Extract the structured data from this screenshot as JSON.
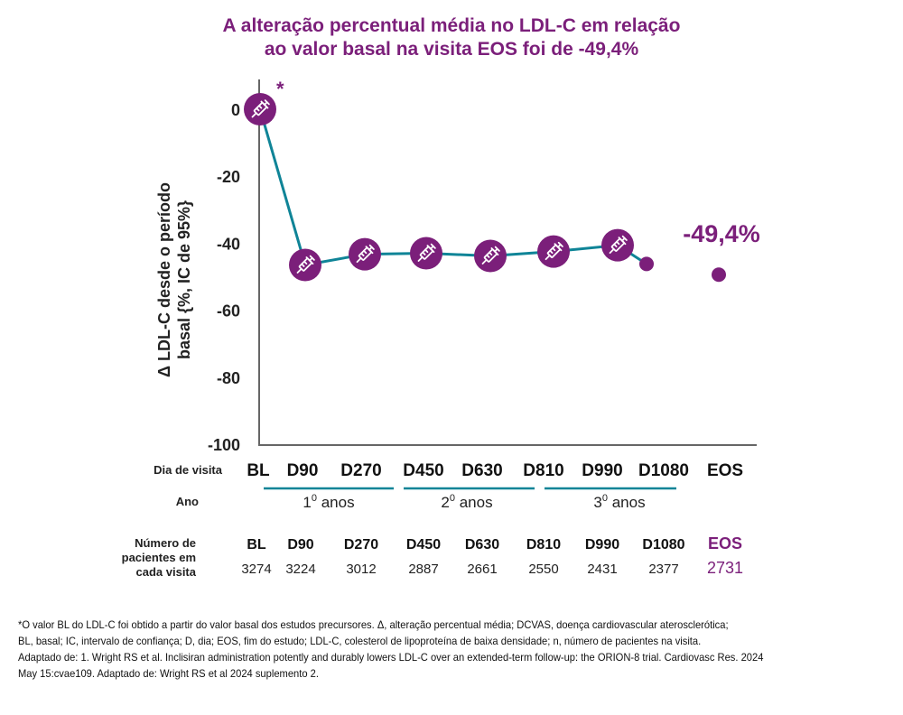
{
  "title_lines": [
    "A alteração percentual média no LDL-C em relação",
    "ao valor basal na visita EOS foi de -49,4%"
  ],
  "chart_data": {
    "type": "line",
    "title": "A alteração percentual média no LDL-C em relação ao valor basal na visita EOS foi de -49,4%",
    "ylabel_lines": [
      "Δ LDL-C desde o período",
      "basal {%, IC de 95%}"
    ],
    "ylim": [
      -100,
      0
    ],
    "yticks": [
      0,
      -20,
      -40,
      -60,
      -80,
      -100
    ],
    "ytick_labels": [
      "0",
      "-20",
      "-40",
      "-60",
      "-80",
      "-100"
    ],
    "grid": false,
    "categories": [
      "BL",
      "D90",
      "D270",
      "D450",
      "D630",
      "D810",
      "D990",
      "D1080",
      "EOS"
    ],
    "values": [
      0,
      -46.5,
      -43.3,
      -43,
      -43.8,
      -42.5,
      -40.6,
      -46.2,
      -49.4
    ],
    "injection_visits": [
      true,
      true,
      true,
      true,
      true,
      true,
      true,
      false,
      false
    ],
    "connected": [
      true,
      true,
      true,
      true,
      true,
      true,
      true,
      true,
      false
    ],
    "annotations": {
      "bl_asterisk": "*",
      "eos_label": "-49,4%"
    },
    "line_color": "#0f8497",
    "marker_color": "#7b1f7a",
    "marker_icon": "syringe-icon"
  },
  "table": {
    "visit_day_label": "Dia de visita",
    "year_label": "Ano",
    "years": [
      {
        "num": "1",
        "sup": "0",
        "text": " anos"
      },
      {
        "num": "2",
        "sup": "0",
        "text": " anos"
      },
      {
        "num": "3",
        "sup": "0",
        "text": " anos"
      }
    ],
    "patients_label_lines": [
      "Número de",
      "pacientes em",
      "cada visita"
    ],
    "patients_visits": [
      "BL",
      "D90",
      "D270",
      "D450",
      "D630",
      "D810",
      "D990",
      "D1080",
      "EOS"
    ],
    "patients_counts": [
      "3274",
      "3224",
      "3012",
      "2887",
      "2661",
      "2550",
      "2431",
      "2377",
      "2731"
    ],
    "highlight_color": "#7b1f7a",
    "year_bar_color": "#0f8497"
  },
  "footnote_lines": [
    "*O valor BL do LDL-C foi obtido a partir do valor basal dos estudos precursores. Δ, alteração percentual média; DCVAS, doença cardiovascular aterosclerótica;",
    "BL, basal; IC, intervalo de confiança; D, dia; EOS, fim do estudo; LDL-C, colesterol de lipoproteína de baixa densidade; n, número de pacientes na visita.",
    "Adaptado de: 1. Wright RS et al. Inclisiran administration potently and durably lowers LDL-C over an extended-term follow-up: the ORION-8 trial. Cardiovasc Res. 2024",
    "May 15:cvae109. Adaptado de: Wright RS et al 2024 suplemento 2."
  ]
}
